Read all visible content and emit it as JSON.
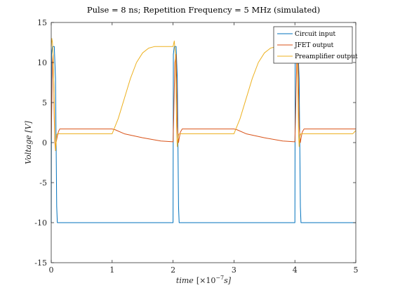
{
  "chart_data": {
    "type": "line",
    "title": "Pulse = 8 ns; Repetition Frequency = 5 MHz (simulated)",
    "xlabel": "time",
    "xlabel_unit": "[×10",
    "xlabel_exp": "−7",
    "xlabel_unit_end": "s]",
    "ylabel": "Voltage [V]",
    "xlim": [
      0,
      5
    ],
    "ylim": [
      -15,
      15
    ],
    "xticks": [
      0,
      1,
      2,
      3,
      4,
      5
    ],
    "xtick_labels": [
      "0",
      "1",
      "2",
      "3",
      "4",
      "5"
    ],
    "yticks": [
      -15,
      -10,
      -5,
      0,
      5,
      10,
      15
    ],
    "ytick_labels": [
      "-15",
      "-10",
      "-5",
      "0",
      "5",
      "10",
      "15"
    ],
    "legend_position": "top-right",
    "grid": false,
    "series": [
      {
        "name": "Circuit input",
        "color": "#0072BD",
        "x": [
          0,
          0.005,
          0.02,
          0.05,
          0.07,
          0.09,
          0.1,
          2.0,
          2.005,
          2.02,
          2.05,
          2.07,
          2.09,
          2.1,
          4.0,
          4.005,
          4.02,
          4.05,
          4.07,
          4.09,
          4.1,
          5.0
        ],
        "y": [
          -10,
          11,
          12,
          12,
          8,
          -8,
          -10,
          -10,
          11,
          12,
          12,
          8,
          -8,
          -10,
          -10,
          11,
          12,
          12,
          8,
          -8,
          -10,
          -10
        ]
      },
      {
        "name": "JFET output",
        "color": "#D95319",
        "x": [
          0,
          0.01,
          0.02,
          0.03,
          0.04,
          0.05,
          0.06,
          0.07,
          0.08,
          0.1,
          0.12,
          0.14,
          0.16,
          0.2,
          0.5,
          1.0,
          1.05,
          1.2,
          1.5,
          1.8,
          2.0,
          2.01,
          2.03,
          2.05,
          2.06,
          2.07,
          2.09,
          2.1,
          2.12,
          2.15,
          2.2,
          2.5,
          3.0,
          3.05,
          3.2,
          3.5,
          3.8,
          4.0,
          4.01,
          4.03,
          4.05,
          4.06,
          4.07,
          4.09,
          4.1,
          4.12,
          4.15,
          4.2,
          4.5,
          5.0
        ],
        "y": [
          0.5,
          5,
          10,
          11,
          8,
          3,
          0,
          -1,
          0,
          0.8,
          1.4,
          1.7,
          1.7,
          1.7,
          1.7,
          1.7,
          1.6,
          1.1,
          0.6,
          0.2,
          0.1,
          3,
          10,
          11,
          7,
          2,
          0,
          0.5,
          1.3,
          1.7,
          1.7,
          1.7,
          1.7,
          1.6,
          1.1,
          0.6,
          0.2,
          0.1,
          3,
          10,
          11,
          7,
          2,
          0,
          0.5,
          1.3,
          1.7,
          1.7,
          1.7,
          1.7
        ]
      },
      {
        "name": "Preamplifier output",
        "color": "#EDB120",
        "x": [
          0,
          0.01,
          0.02,
          0.03,
          0.05,
          0.06,
          0.07,
          0.08,
          0.09,
          0.1,
          0.15,
          0.5,
          1.0,
          1.1,
          1.2,
          1.3,
          1.4,
          1.5,
          1.6,
          1.7,
          1.8,
          2.0,
          2.02,
          2.04,
          2.05,
          2.06,
          2.07,
          2.08,
          2.09,
          2.1,
          2.15,
          2.5,
          3.0,
          3.1,
          3.2,
          3.3,
          3.4,
          3.5,
          3.6,
          3.7,
          3.8,
          4.0,
          4.02,
          4.04,
          4.05,
          4.06,
          4.07,
          4.08,
          4.09,
          4.1,
          4.15,
          4.5,
          4.95,
          5.0
        ],
        "y": [
          12,
          13,
          12.5,
          11,
          5,
          1,
          -1,
          0,
          1,
          1.1,
          1.1,
          1.1,
          1.1,
          3,
          5.5,
          8,
          10,
          11.2,
          11.8,
          12,
          12,
          12,
          12.7,
          11,
          6,
          1,
          -0.5,
          0.5,
          1.0,
          1.1,
          1.1,
          1.1,
          1.1,
          3,
          5.5,
          8,
          10,
          11.2,
          11.8,
          12,
          12,
          12,
          12.7,
          11,
          6,
          1,
          -0.5,
          0.5,
          1.0,
          1.1,
          1.1,
          1.1,
          1.1,
          1.5
        ]
      }
    ]
  }
}
